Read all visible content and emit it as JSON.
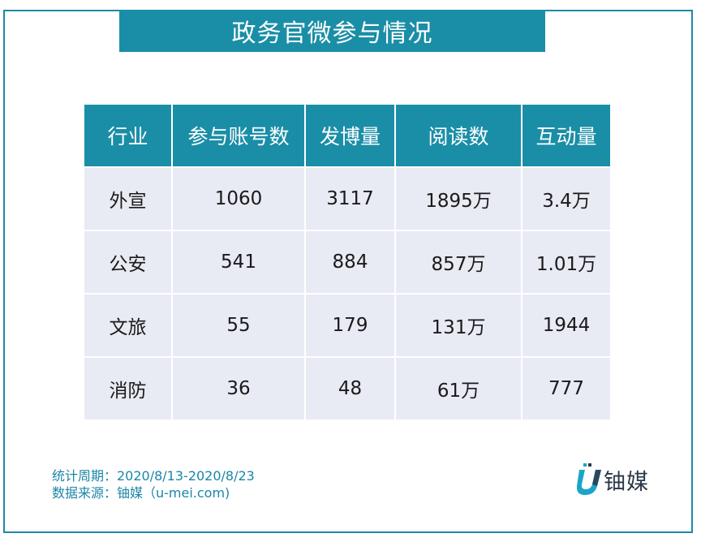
{
  "title": "政务官微参与情况",
  "chart_data": {
    "type": "table",
    "columns": [
      "行业",
      "参与账号数",
      "发博量",
      "阅读数",
      "互动量"
    ],
    "rows": [
      [
        "外宣",
        "1060",
        "3117",
        "1895万",
        "3.4万"
      ],
      [
        "公安",
        "541",
        "884",
        "857万",
        "1.01万"
      ],
      [
        "文旅",
        "55",
        "179",
        "131万",
        "1944"
      ],
      [
        "消防",
        "36",
        "48",
        "61万",
        "777"
      ]
    ]
  },
  "footer": {
    "period": "统计周期：2020/8/13-2020/8/23",
    "source": "数据来源：铀媒（u-mei.com)"
  },
  "logo": {
    "text": "铀媒",
    "icon": "u-mei-logo-icon"
  },
  "colors": {
    "header_bg": "#1a8ea7",
    "cell_bg": "#e8eaf4",
    "footer_text": "#1b86a8",
    "border": "#1b8aa5"
  }
}
